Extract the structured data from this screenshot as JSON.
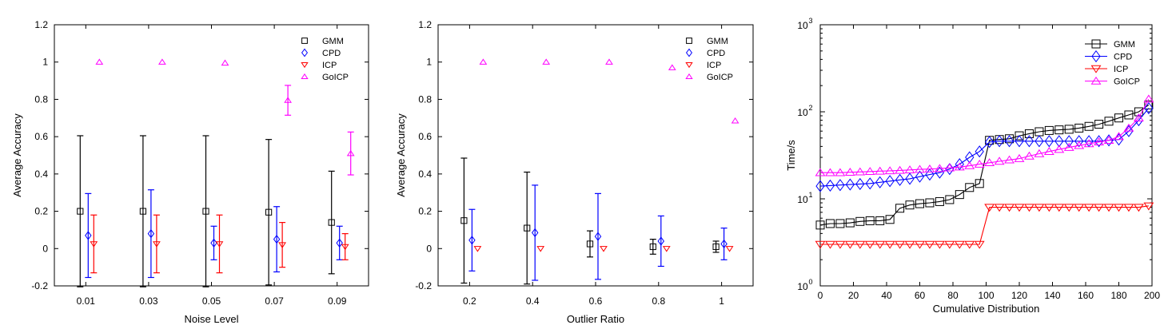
{
  "chart_data": [
    {
      "type": "scatter",
      "subtype": "errorbar",
      "xlabel": "Noise Level",
      "ylabel": "Average Accuracy",
      "categories": [
        "0.01",
        "0.03",
        "0.05",
        "0.07",
        "0.09"
      ],
      "ylim": [
        -0.2,
        1.2
      ],
      "yticks": [
        "-0.2",
        "0",
        "0.2",
        "0.4",
        "0.6",
        "0.8",
        "1",
        "1.2"
      ],
      "legend_position": "top-right",
      "series": [
        {
          "name": "GMM",
          "color": "#000000",
          "marker": "square",
          "values": [
            0.2,
            0.2,
            0.2,
            0.195,
            0.14
          ],
          "errors": [
            0.405,
            0.405,
            0.405,
            0.39,
            0.275
          ]
        },
        {
          "name": "CPD",
          "color": "#0000ff",
          "marker": "diamond",
          "values": [
            0.07,
            0.08,
            0.03,
            0.05,
            0.03
          ],
          "errors": [
            0.225,
            0.235,
            0.09,
            0.175,
            0.09
          ]
        },
        {
          "name": "ICP",
          "color": "#ff0000",
          "marker": "triangle-down",
          "values": [
            0.025,
            0.025,
            0.025,
            0.02,
            0.01
          ],
          "errors": [
            0.155,
            0.155,
            0.155,
            0.12,
            0.07
          ]
        },
        {
          "name": "GoICP",
          "color": "#ff00ff",
          "marker": "triangle-up",
          "values": [
            1.0,
            1.0,
            0.995,
            0.795,
            0.51
          ],
          "errors": [
            0.0,
            0.0,
            0.0,
            0.08,
            0.115
          ]
        }
      ]
    },
    {
      "type": "scatter",
      "subtype": "errorbar",
      "xlabel": "Outlier Ratio",
      "ylabel": "Average Accuracy",
      "categories": [
        "0.2",
        "0.4",
        "0.6",
        "0.8",
        "1"
      ],
      "ylim": [
        -0.2,
        1.2
      ],
      "yticks": [
        "-0.2",
        "0",
        "0.2",
        "0.4",
        "0.6",
        "0.8",
        "1",
        "1.2"
      ],
      "legend_position": "top-right",
      "series": [
        {
          "name": "GMM",
          "color": "#000000",
          "marker": "square",
          "values": [
            0.15,
            0.11,
            0.025,
            0.01,
            0.01
          ],
          "errors": [
            0.335,
            0.3,
            0.07,
            0.04,
            0.03
          ]
        },
        {
          "name": "CPD",
          "color": "#0000ff",
          "marker": "diamond",
          "values": [
            0.045,
            0.085,
            0.065,
            0.04,
            0.025
          ],
          "errors": [
            0.165,
            0.255,
            0.23,
            0.135,
            0.085
          ]
        },
        {
          "name": "ICP",
          "color": "#ff0000",
          "marker": "triangle-down",
          "values": [
            0.0,
            0.0,
            0.0,
            0.0,
            0.0
          ],
          "errors": [
            0.0,
            0.0,
            0.0,
            0.0,
            0.0
          ]
        },
        {
          "name": "GoICP",
          "color": "#ff00ff",
          "marker": "triangle-up",
          "values": [
            1.0,
            1.0,
            1.0,
            0.97,
            0.685
          ],
          "errors": [
            0.0,
            0.0,
            0.0,
            0.0,
            0.0
          ]
        }
      ]
    },
    {
      "type": "line",
      "xlabel": "Cumulative Distribution",
      "ylabel": "Time/s",
      "xlim": [
        0,
        200
      ],
      "xticks": [
        0,
        20,
        40,
        60,
        80,
        100,
        120,
        140,
        160,
        180,
        200
      ],
      "yscale": "log",
      "ylim": [
        1,
        1000
      ],
      "yticks": [
        {
          "base": "10",
          "exp": "0"
        },
        {
          "base": "10",
          "exp": "1"
        },
        {
          "base": "10",
          "exp": "2"
        },
        {
          "base": "10",
          "exp": "3"
        }
      ],
      "legend_position": "top-right",
      "x": [
        0,
        6,
        12,
        18,
        24,
        30,
        36,
        42,
        48,
        54,
        60,
        66,
        72,
        78,
        84,
        90,
        96,
        102,
        108,
        114,
        120,
        126,
        132,
        138,
        144,
        150,
        156,
        162,
        168,
        174,
        180,
        186,
        192,
        198
      ],
      "series": [
        {
          "name": "GMM",
          "color": "#000000",
          "marker": "square",
          "values": [
            5.0,
            5.2,
            5.2,
            5.3,
            5.5,
            5.6,
            5.6,
            5.8,
            7.8,
            8.5,
            8.8,
            9.0,
            9.3,
            9.8,
            11.2,
            13.5,
            15.0,
            47,
            48,
            49,
            53,
            56,
            59,
            61,
            62,
            63,
            65,
            68,
            72,
            78,
            85,
            92,
            100,
            120
          ]
        },
        {
          "name": "CPD",
          "color": "#0000ff",
          "marker": "diamond",
          "values": [
            14.0,
            14.2,
            14.4,
            14.6,
            14.8,
            15.0,
            15.5,
            16,
            16.5,
            17,
            18,
            19,
            20,
            22,
            25,
            30,
            35,
            45,
            46,
            46,
            46,
            46,
            46,
            46,
            46,
            46,
            46,
            46,
            46,
            47,
            48,
            60,
            80,
            110
          ]
        },
        {
          "name": "ICP",
          "color": "#ff0000",
          "marker": "triangle-down",
          "values": [
            3.0,
            3.0,
            3.0,
            3.0,
            3.0,
            3.0,
            3.0,
            3.0,
            3.0,
            3.0,
            3.0,
            3.0,
            3.0,
            3.0,
            3.0,
            3.0,
            3.0,
            8.0,
            8.0,
            8.0,
            8.0,
            8.0,
            8.0,
            8.0,
            8.0,
            8.0,
            8.0,
            8.0,
            8.0,
            8.0,
            8.0,
            8.0,
            8.0,
            8.3
          ]
        },
        {
          "name": "GoICP",
          "color": "#ff00ff",
          "marker": "triangle-up",
          "values": [
            20,
            20,
            20,
            20.2,
            20.4,
            20.6,
            20.8,
            21,
            21.2,
            21.5,
            21.8,
            22,
            22.3,
            22.7,
            23.2,
            24,
            25,
            26,
            27,
            28,
            29,
            31,
            33,
            35,
            37,
            39,
            41,
            43,
            45,
            47,
            52,
            65,
            85,
            140
          ]
        }
      ]
    }
  ]
}
